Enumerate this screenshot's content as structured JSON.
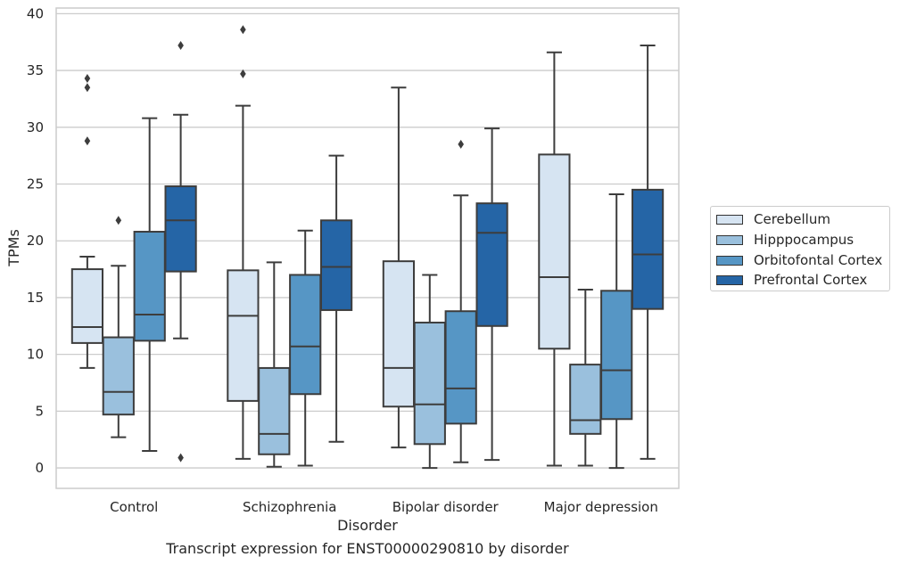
{
  "chart_data": {
    "type": "box",
    "xlabel": "Disorder",
    "ylabel": "TPMs",
    "caption": "Transcript expression for ENST00000290810 by disorder",
    "ylim": [
      -1.8,
      40.5
    ],
    "yticks": [
      0,
      5,
      10,
      15,
      20,
      25,
      30,
      35,
      40
    ],
    "grid": "horizontal",
    "legend_position": "right",
    "categories": [
      "Control",
      "Schizophrenia",
      "Bipolar disorder",
      "Major depression"
    ],
    "series": [
      {
        "name": "Cerebellum",
        "color": "#d6e4f2",
        "boxes": [
          {
            "whislo": 8.8,
            "q1": 11.0,
            "med": 12.4,
            "q3": 17.5,
            "whishi": 18.6,
            "fliers": [
              28.8,
              33.5,
              34.3
            ]
          },
          {
            "whislo": 0.8,
            "q1": 5.9,
            "med": 13.4,
            "q3": 17.4,
            "whishi": 31.9,
            "fliers": [
              34.7,
              38.6
            ]
          },
          {
            "whislo": 1.8,
            "q1": 5.4,
            "med": 8.8,
            "q3": 18.2,
            "whishi": 33.5,
            "fliers": []
          },
          {
            "whislo": 0.2,
            "q1": 10.5,
            "med": 16.8,
            "q3": 27.6,
            "whishi": 36.6,
            "fliers": []
          }
        ]
      },
      {
        "name": "Hipppocampus",
        "color": "#9ac0dd",
        "boxes": [
          {
            "whislo": 2.7,
            "q1": 4.7,
            "med": 6.7,
            "q3": 11.5,
            "whishi": 17.8,
            "fliers": [
              21.8
            ]
          },
          {
            "whislo": 0.1,
            "q1": 1.2,
            "med": 3.0,
            "q3": 8.8,
            "whishi": 18.1,
            "fliers": []
          },
          {
            "whislo": 0.0,
            "q1": 2.1,
            "med": 5.6,
            "q3": 12.8,
            "whishi": 17.0,
            "fliers": []
          },
          {
            "whislo": 0.2,
            "q1": 3.0,
            "med": 4.2,
            "q3": 9.1,
            "whishi": 15.7,
            "fliers": []
          }
        ]
      },
      {
        "name": "Orbitofontal Cortex",
        "color": "#5696c5",
        "boxes": [
          {
            "whislo": 1.5,
            "q1": 11.2,
            "med": 13.5,
            "q3": 20.8,
            "whishi": 30.8,
            "fliers": []
          },
          {
            "whislo": 0.2,
            "q1": 6.5,
            "med": 10.7,
            "q3": 17.0,
            "whishi": 20.9,
            "fliers": []
          },
          {
            "whislo": 0.5,
            "q1": 3.9,
            "med": 7.0,
            "q3": 13.8,
            "whishi": 24.0,
            "fliers": [
              28.5
            ]
          },
          {
            "whislo": 0.0,
            "q1": 4.3,
            "med": 8.6,
            "q3": 15.6,
            "whishi": 24.1,
            "fliers": []
          }
        ]
      },
      {
        "name": "Prefrontal Cortex",
        "color": "#2565a6",
        "boxes": [
          {
            "whislo": 11.4,
            "q1": 17.3,
            "med": 21.8,
            "q3": 24.8,
            "whishi": 31.1,
            "fliers": [
              0.9,
              37.2
            ]
          },
          {
            "whislo": 2.3,
            "q1": 13.9,
            "med": 17.7,
            "q3": 21.8,
            "whishi": 27.5,
            "fliers": []
          },
          {
            "whislo": 0.7,
            "q1": 12.5,
            "med": 20.7,
            "q3": 23.3,
            "whishi": 29.9,
            "fliers": []
          },
          {
            "whislo": 0.8,
            "q1": 14.0,
            "med": 18.8,
            "q3": 24.5,
            "whishi": 37.2,
            "fliers": []
          }
        ]
      }
    ]
  }
}
